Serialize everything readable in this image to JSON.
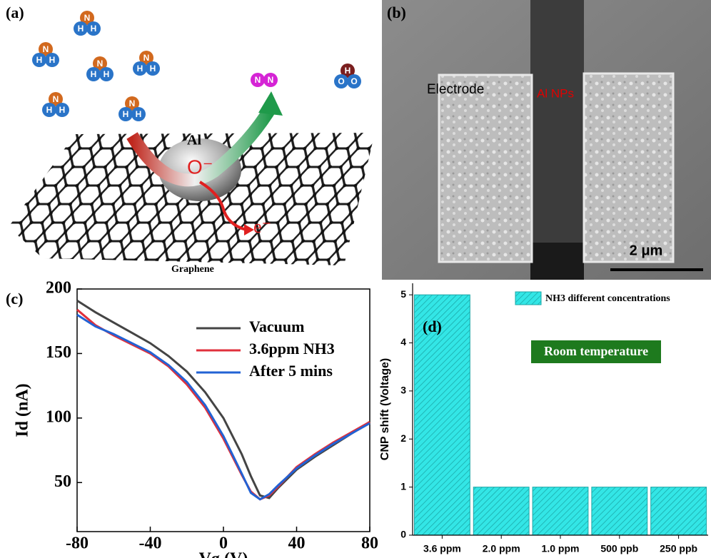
{
  "panels": {
    "a": {
      "label": "(a)",
      "nh3": [
        "N",
        "H",
        "H"
      ],
      "n2": [
        "N",
        "N"
      ],
      "h2o": [
        "H",
        "O",
        "O"
      ],
      "al": "Al",
      "oxygen": "O⁻",
      "electron": "e⁻",
      "graphene": "Graphene"
    },
    "b": {
      "label": "(b)",
      "electrode": "Electrode",
      "particles": "Al NPs",
      "scale": "2 μm"
    }
  },
  "chart_data": [
    {
      "type": "line",
      "label": "(c)",
      "xlabel": "Vg (V)",
      "ylabel": "Id (nA)",
      "x": [
        -80,
        -70,
        -60,
        -50,
        -40,
        -30,
        -20,
        -10,
        0,
        10,
        15,
        20,
        25,
        30,
        40,
        50,
        60,
        70,
        80
      ],
      "series": [
        {
          "name": "Vacuum",
          "color": "#444444",
          "values": [
            191,
            182,
            174,
            166,
            158,
            148,
            136,
            120,
            100,
            72,
            55,
            40,
            38,
            46,
            60,
            70,
            79,
            88,
            97
          ]
        },
        {
          "name": "3.6ppm NH3",
          "color": "#e0303c",
          "values": [
            184,
            172,
            164,
            157,
            150,
            140,
            126,
            108,
            84,
            56,
            43,
            37,
            40,
            47,
            62,
            72,
            81,
            89,
            97
          ]
        },
        {
          "name": "After 5 mins",
          "color": "#2262d4",
          "values": [
            180,
            171,
            165,
            158,
            151,
            141,
            128,
            110,
            86,
            57,
            42,
            37,
            41,
            48,
            61,
            71,
            80,
            88,
            96
          ]
        }
      ],
      "xlim": [
        -80,
        80
      ],
      "ylim": [
        12,
        200
      ],
      "xticks": [
        -80,
        -40,
        0,
        40,
        80
      ],
      "yticks": [
        50,
        100,
        150,
        200
      ],
      "legend": "upper right"
    },
    {
      "type": "bar",
      "label": "(d)",
      "ylabel": "CNP shift (Voltage)",
      "annotation": "Room temperature",
      "categories": [
        "3.6 ppm",
        "2.0 ppm",
        "1.0 ppm",
        "500 ppb",
        "250 ppb"
      ],
      "series": [
        {
          "name": "NH3 different concentrations",
          "color": "#33e6e6",
          "values": [
            5,
            1,
            1,
            1,
            1
          ]
        }
      ],
      "ylim": [
        0,
        5.24
      ],
      "yticks": [
        0,
        1,
        2,
        3,
        4,
        5
      ],
      "hatch": true,
      "legend": "upper right"
    }
  ]
}
